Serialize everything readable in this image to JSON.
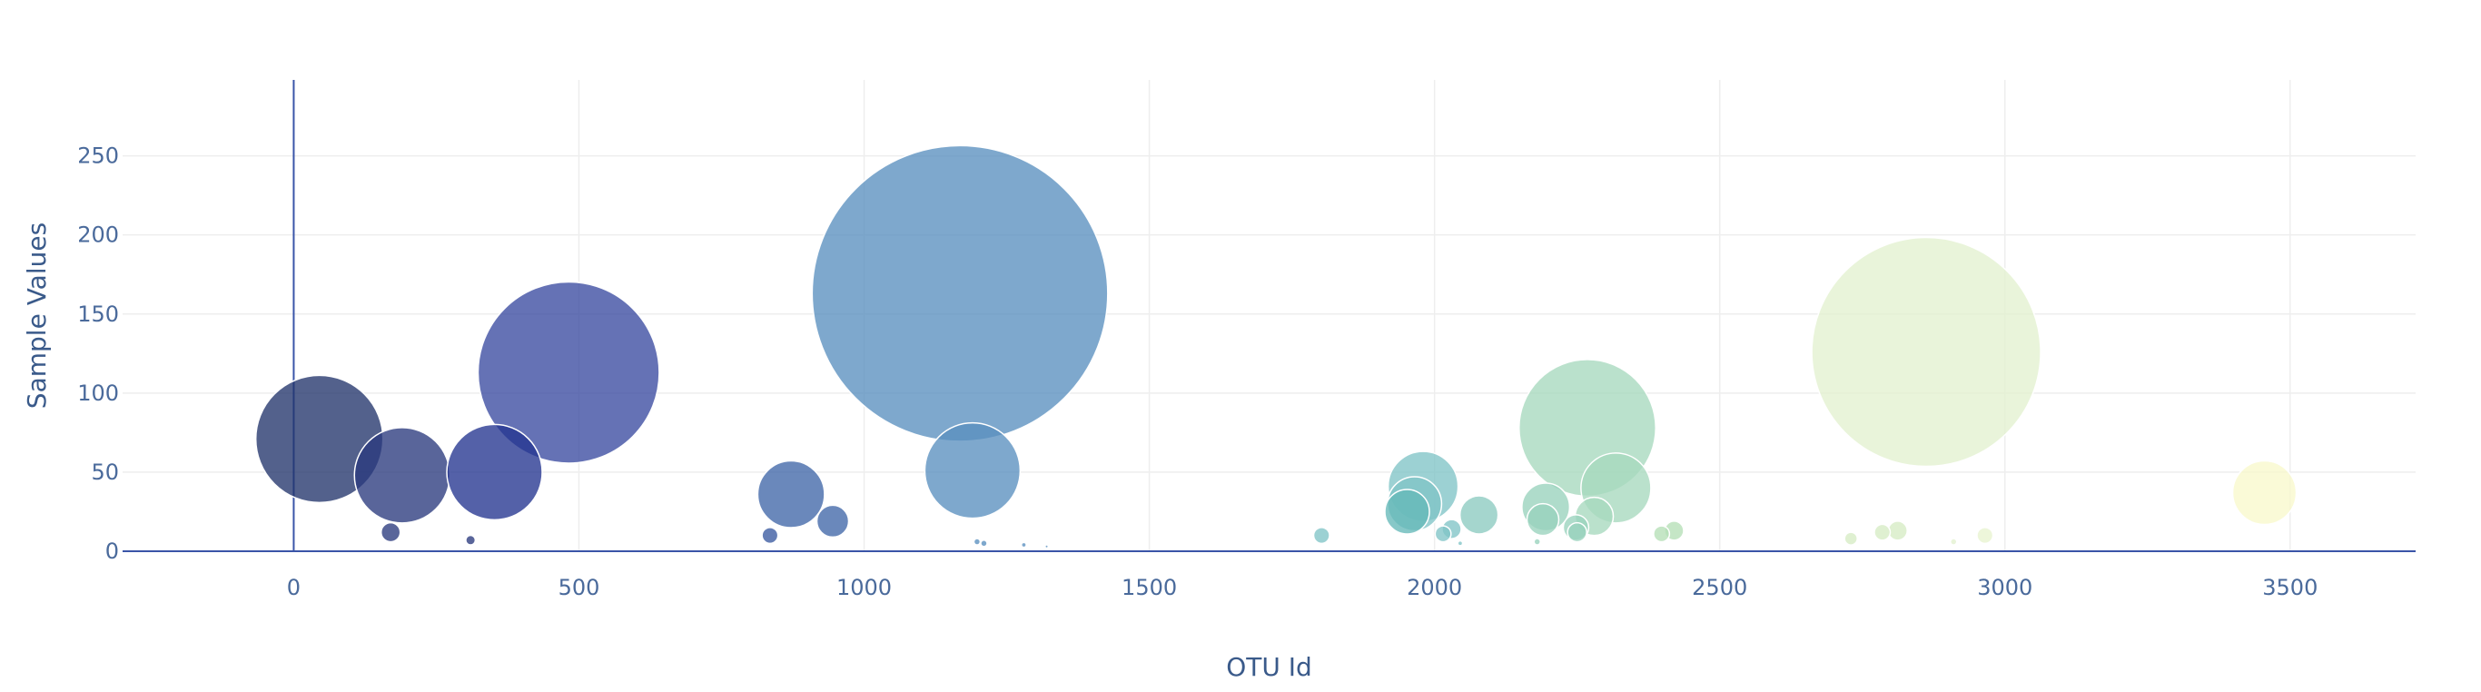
{
  "chart_data": {
    "type": "scatter",
    "subtype": "bubble",
    "title": "",
    "xlabel": "OTU Id",
    "ylabel": "Sample Values",
    "xlim": [
      -300,
      3720
    ],
    "ylim": [
      0,
      298
    ],
    "x_ticks": [
      0,
      500,
      1000,
      1500,
      2000,
      2500,
      3000,
      3500
    ],
    "y_ticks": [
      0,
      50,
      100,
      150,
      200,
      250
    ],
    "grid": true,
    "legend": "none",
    "colorscale": "Earth-like (dark navy → blue → teal → light green → pale yellow)",
    "points": [
      {
        "x": 45,
        "y": 71,
        "r": 40,
        "color": "#23346b"
      },
      {
        "x": 190,
        "y": 48,
        "r": 30,
        "color": "#2a3a7d"
      },
      {
        "x": 170,
        "y": 12,
        "r": 6,
        "color": "#2a3a7d"
      },
      {
        "x": 310,
        "y": 7,
        "r": 3,
        "color": "#2a3a7d"
      },
      {
        "x": 352,
        "y": 50,
        "r": 30,
        "color": "#24358f"
      },
      {
        "x": 482,
        "y": 113,
        "r": 57,
        "color": "#3a4aa0"
      },
      {
        "x": 835,
        "y": 10,
        "r": 5,
        "color": "#3a5aa0"
      },
      {
        "x": 872,
        "y": 36,
        "r": 21,
        "color": "#4066a8"
      },
      {
        "x": 945,
        "y": 19,
        "r": 10,
        "color": "#4066a8"
      },
      {
        "x": 1168,
        "y": 163,
        "r": 93,
        "color": "#5a8fbf"
      },
      {
        "x": 1190,
        "y": 51,
        "r": 30,
        "color": "#5a8fbf"
      },
      {
        "x": 1198,
        "y": 6,
        "r": 2,
        "color": "#5a8fbf"
      },
      {
        "x": 1210,
        "y": 5,
        "r": 2,
        "color": "#5a8fbf"
      },
      {
        "x": 1280,
        "y": 4,
        "r": 1.5,
        "color": "#5a8fbf"
      },
      {
        "x": 1320,
        "y": 3,
        "r": 1,
        "color": "#5a8fbf"
      },
      {
        "x": 1802,
        "y": 10,
        "r": 5,
        "color": "#80c4c6"
      },
      {
        "x": 1980,
        "y": 41,
        "r": 22,
        "color": "#80c4c6"
      },
      {
        "x": 1965,
        "y": 30,
        "r": 17,
        "color": "#80c4c6"
      },
      {
        "x": 1952,
        "y": 25,
        "r": 14,
        "color": "#65b8b9"
      },
      {
        "x": 2015,
        "y": 11,
        "r": 5,
        "color": "#80c4c6"
      },
      {
        "x": 2030,
        "y": 14,
        "r": 6,
        "color": "#80c4c6"
      },
      {
        "x": 2045,
        "y": 5,
        "r": 1.5,
        "color": "#80c4c6"
      },
      {
        "x": 2078,
        "y": 23,
        "r": 12,
        "color": "#8ccbc0"
      },
      {
        "x": 2195,
        "y": 28,
        "r": 15,
        "color": "#98d2bc"
      },
      {
        "x": 2190,
        "y": 20,
        "r": 10,
        "color": "#98d2bc"
      },
      {
        "x": 2180,
        "y": 6,
        "r": 2,
        "color": "#98d2bc"
      },
      {
        "x": 2248,
        "y": 15,
        "r": 8,
        "color": "#98d2bc"
      },
      {
        "x": 2250,
        "y": 12,
        "r": 6,
        "color": "#98d2bc"
      },
      {
        "x": 2268,
        "y": 78,
        "r": 43,
        "color": "#a6d8be"
      },
      {
        "x": 2280,
        "y": 22,
        "r": 12,
        "color": "#a6d8be"
      },
      {
        "x": 2318,
        "y": 40,
        "r": 22,
        "color": "#a6d8be"
      },
      {
        "x": 2398,
        "y": 11,
        "r": 5,
        "color": "#b5dfb6"
      },
      {
        "x": 2420,
        "y": 13,
        "r": 6,
        "color": "#b5dfb6"
      },
      {
        "x": 2730,
        "y": 8,
        "r": 4,
        "color": "#d6ecc4"
      },
      {
        "x": 2785,
        "y": 12,
        "r": 5,
        "color": "#d6ecc4"
      },
      {
        "x": 2812,
        "y": 13,
        "r": 6,
        "color": "#d6ecc4"
      },
      {
        "x": 2862,
        "y": 126,
        "r": 72,
        "color": "#e3f1d0"
      },
      {
        "x": 2910,
        "y": 6,
        "r": 2,
        "color": "#e3f1d0"
      },
      {
        "x": 2965,
        "y": 10,
        "r": 5,
        "color": "#e8f3d0"
      },
      {
        "x": 3455,
        "y": 37,
        "r": 20,
        "color": "#f8f8cc"
      }
    ]
  }
}
